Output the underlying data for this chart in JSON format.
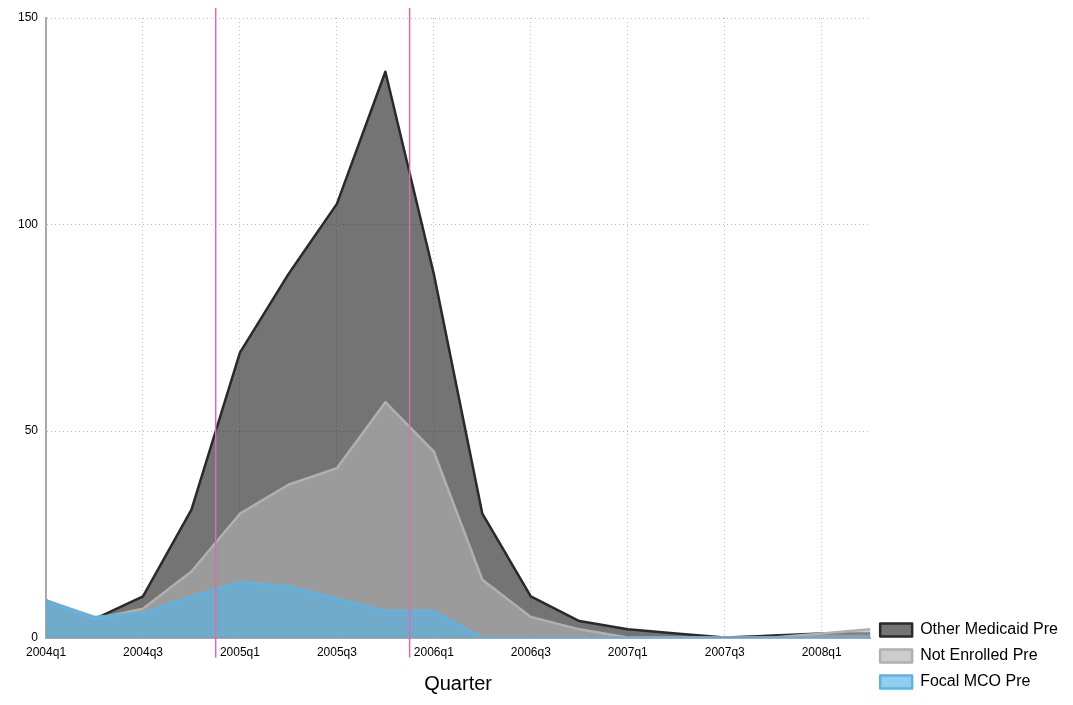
{
  "chart_data": {
    "type": "area",
    "xlabel": "Quarter",
    "categories": [
      "2004q1",
      null,
      "2004q3",
      null,
      "2005q1",
      null,
      "2005q3",
      null,
      "2006q1",
      null,
      "2006q3",
      null,
      "2007q1",
      null,
      "2007q3",
      null,
      "2008q1",
      null
    ],
    "series": [
      {
        "name": "Other Medicaid Pre",
        "color": "#2a2a2a",
        "values": [
          9,
          4.5,
          10,
          31,
          69,
          88,
          105,
          137,
          88,
          30,
          10,
          4,
          2,
          1,
          0,
          0.5,
          1,
          1
        ]
      },
      {
        "name": "Not Enrolled Pre",
        "color": "#b0b0b0",
        "values": [
          9,
          4.5,
          7,
          16,
          30,
          37,
          41,
          57,
          45,
          14,
          5,
          2,
          0,
          0,
          0,
          0,
          1,
          2
        ]
      },
      {
        "name": "Focal MCO Pre",
        "color": "#5ab4e5",
        "values": [
          9,
          5,
          6,
          10,
          13.5,
          12.5,
          9.5,
          6.5,
          6.5,
          0,
          0,
          0,
          0,
          0,
          0,
          0,
          0,
          0
        ]
      }
    ],
    "ylim": [
      0,
      150
    ],
    "yticks": [
      0,
      50,
      100,
      150
    ],
    "grid": true,
    "legend": "bottom right"
  }
}
